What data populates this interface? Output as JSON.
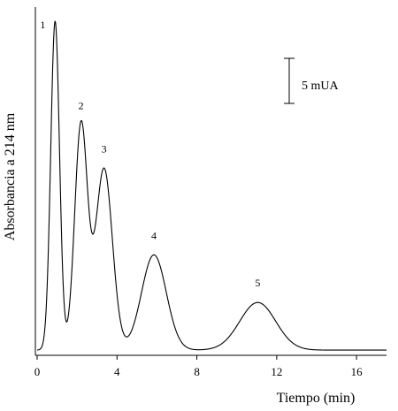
{
  "chart_data": {
    "type": "line",
    "xlabel": "Tiempo (min)",
    "ylabel": "Absorbancia a 214 nm",
    "xlim": [
      0,
      17.5
    ],
    "ylim": [
      0,
      39
    ],
    "x_ticks": [
      0,
      4,
      8,
      12,
      16
    ],
    "x_tick_labels": [
      "0",
      "4",
      "8",
      "12",
      "16"
    ],
    "grid": false,
    "baseline": 0.4,
    "series": [
      {
        "peaks": [
          {
            "label": "1",
            "x": 0.9,
            "y": 38,
            "width": 0.22
          },
          {
            "label": "2",
            "x": 2.2,
            "y": 26,
            "width": 0.32
          },
          {
            "label": "3",
            "x": 3.35,
            "y": 21,
            "width": 0.42
          },
          {
            "label": "4",
            "x": 5.85,
            "y": 11,
            "width": 0.62
          },
          {
            "label": "5",
            "x": 11.05,
            "y": 5.5,
            "width": 0.9
          }
        ]
      }
    ],
    "scale_bar": {
      "label": "5 mUA",
      "value": 5
    }
  }
}
